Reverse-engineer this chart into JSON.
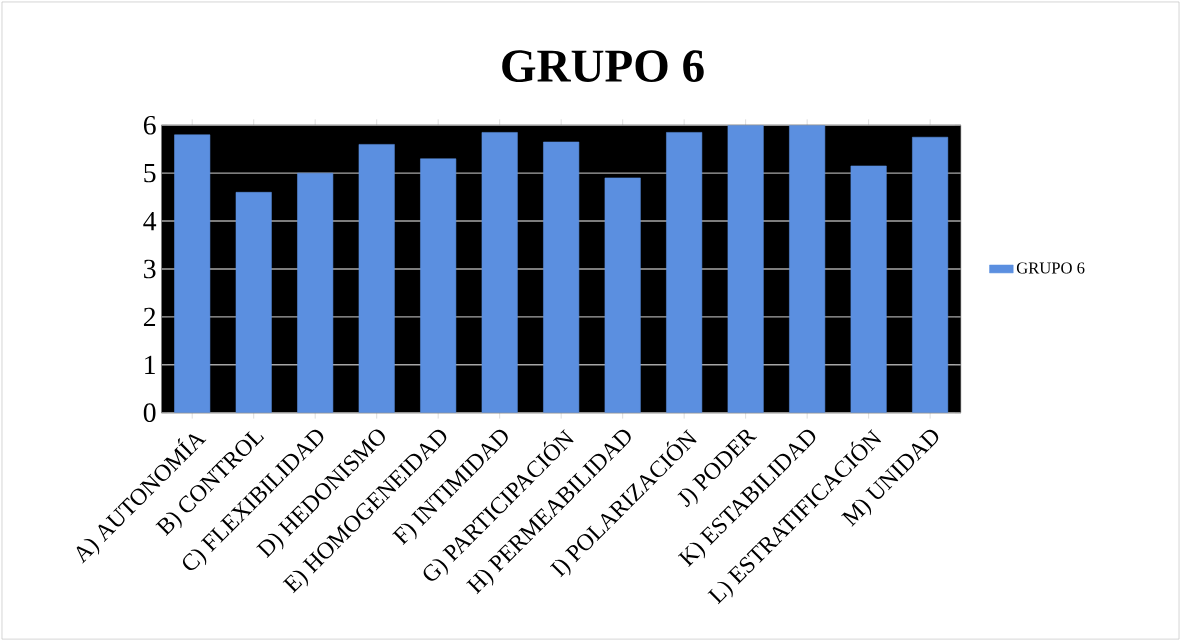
{
  "chart_data": {
    "type": "bar",
    "title": "GRUPO 6",
    "categories": [
      "A) AUTONOMÍA",
      "B) CONTROL",
      "C) FLEXIBILIDAD",
      "D) HEDONISMO",
      "E) HOMOGENEIDAD",
      "F) INTIMIDAD",
      "G) PARTICIPACIÓN",
      "H) PERMEABILIDAD",
      "I) POLARIZACIÓN",
      "J) PODER",
      "K) ESTABILIDAD",
      "L) ESTRATIFICACIÓN",
      "M) UNIDAD"
    ],
    "series": [
      {
        "name": "GRUPO 6",
        "color": "#5b8fe0",
        "values": [
          5.8,
          4.6,
          5.0,
          5.6,
          5.3,
          5.85,
          5.65,
          4.9,
          5.85,
          6.0,
          6.0,
          5.15,
          5.75
        ]
      }
    ],
    "ylim": [
      0,
      6
    ],
    "yticks": [
      0,
      1,
      2,
      3,
      4,
      5,
      6
    ],
    "grid": "y",
    "legend": "right"
  }
}
